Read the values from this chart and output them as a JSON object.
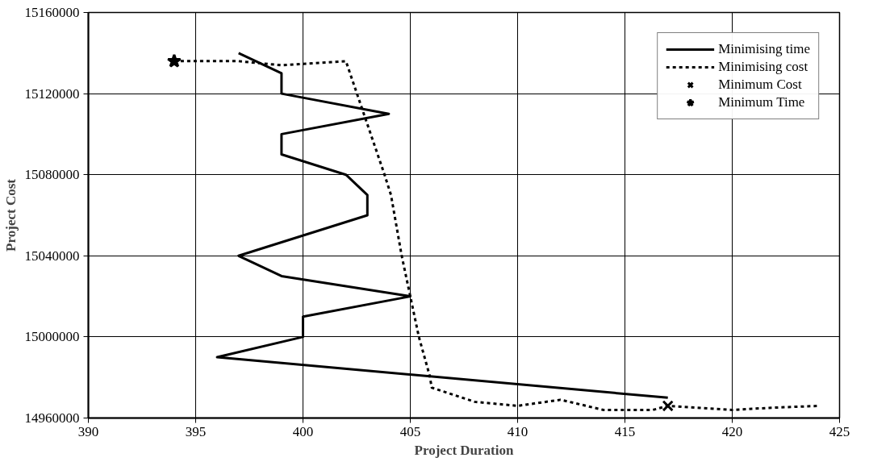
{
  "chart_data": {
    "type": "line",
    "xlabel": "Project Duration",
    "ylabel": "Project Cost",
    "xlim": [
      390,
      425
    ],
    "ylim": [
      14960000,
      15160000
    ],
    "xticks": [
      390,
      395,
      400,
      405,
      410,
      415,
      420,
      425
    ],
    "yticks": [
      14960000,
      15000000,
      15040000,
      15080000,
      15120000,
      15160000
    ],
    "grid": true,
    "legend": "top right",
    "series": [
      {
        "name": "Minimising time",
        "color": "#000000",
        "line_style": "solid",
        "x": [
          397,
          399,
          399,
          404,
          399,
          399,
          402,
          403,
          403,
          397,
          399,
          405,
          400,
          400,
          396,
          417
        ],
        "values": [
          15140000,
          15130000,
          15120000,
          15110000,
          15100000,
          15090000,
          15080000,
          15070000,
          15060000,
          15040000,
          15030000,
          15020000,
          15010000,
          15000000,
          14990000,
          14970000
        ]
      },
      {
        "name": "Minimising cost",
        "color": "#000000",
        "line_style": "dotted",
        "x": [
          394,
          397,
          399,
          402,
          403.8,
          404.1,
          404.6,
          405,
          405.4,
          405.9,
          406,
          408,
          410,
          412,
          414,
          416.3,
          417,
          420,
          421.7,
          424
        ],
        "values": [
          15136000,
          15136000,
          15134000,
          15136000,
          15080000,
          15070000,
          15040000,
          15020000,
          15000000,
          14981000,
          14975000,
          14968000,
          14966000,
          14969000,
          14964000,
          14964000,
          14966000,
          14964000,
          14965000,
          14966000
        ]
      },
      {
        "name": "Minimum Cost",
        "type": "scatter",
        "marker": "cross",
        "color": "#000000",
        "x": [
          417
        ],
        "values": [
          14966000
        ]
      },
      {
        "name": "Minimum Time",
        "type": "scatter",
        "marker": "star",
        "color": "#000000",
        "x": [
          394
        ],
        "values": [
          15136000
        ]
      }
    ]
  }
}
